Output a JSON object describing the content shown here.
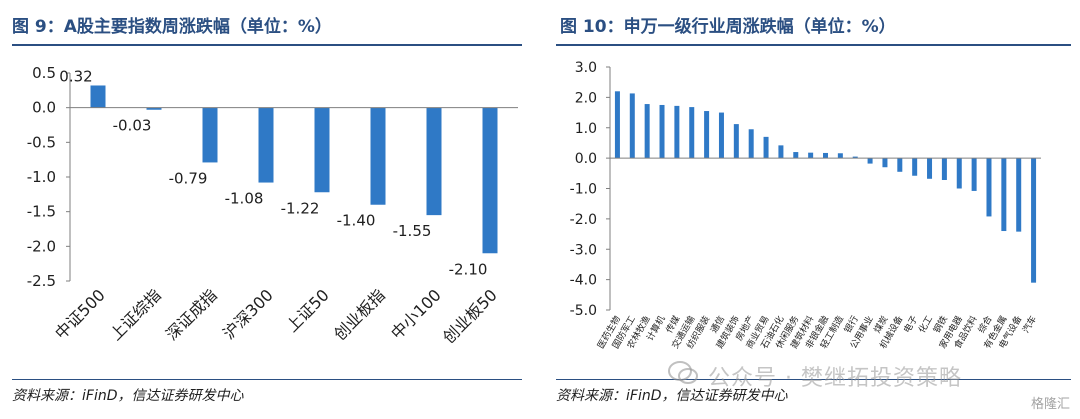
{
  "chart_data": [
    {
      "type": "bar",
      "title": "图 9：A股主要指数周涨跌幅（单位：%）",
      "categories": [
        "中证500",
        "上证综指",
        "深证成指",
        "沪深300",
        "上证50",
        "创业板指",
        "中小100",
        "创业板50"
      ],
      "values": [
        0.32,
        -0.03,
        -0.79,
        -1.08,
        -1.22,
        -1.4,
        -1.55,
        -2.1
      ],
      "value_labels": [
        "0.32",
        "-0.03",
        "-0.79",
        "-1.08",
        "-1.22",
        "-1.40",
        "-1.55",
        "-2.10"
      ],
      "yticks": [
        "0.5",
        "0.0",
        "-0.5",
        "-1.0",
        "-1.5",
        "-2.0",
        "-2.5"
      ],
      "ylim": [
        -2.5,
        0.5
      ],
      "grid": false,
      "source": "资料来源：iFinD，信达证券研发中心"
    },
    {
      "type": "bar",
      "title": "图 10：申万一级行业周涨跌幅（单位：%）",
      "categories": [
        "医药生物",
        "国防军工",
        "农林牧渔",
        "计算机",
        "传媒",
        "交通运输",
        "纺织服装",
        "通信",
        "建筑装饰",
        "房地产",
        "商业贸易",
        "石油石化",
        "休闲服务",
        "建筑材料",
        "非银金融",
        "轻工制造",
        "银行",
        "公用事业",
        "煤炭",
        "机械设备",
        "电子",
        "化工",
        "钢铁",
        "家用电器",
        "食品饮料",
        "综合",
        "有色金属",
        "电气设备",
        "汽车"
      ],
      "values": [
        2.2,
        2.13,
        1.78,
        1.75,
        1.72,
        1.68,
        1.55,
        1.5,
        1.12,
        0.95,
        0.7,
        0.42,
        0.2,
        0.18,
        0.17,
        0.16,
        0.05,
        -0.18,
        -0.3,
        -0.45,
        -0.58,
        -0.68,
        -0.72,
        -1.0,
        -1.08,
        -1.92,
        -2.4,
        -2.42,
        -4.1
      ],
      "yticks": [
        "3.0",
        "2.0",
        "1.0",
        "0.0",
        "-1.0",
        "-2.0",
        "-3.0",
        "-4.0",
        "-5.0"
      ],
      "ylim": [
        -5.0,
        3.0
      ],
      "grid": false,
      "source": "资料来源：iFinD，信达证券研发中心"
    }
  ],
  "colors": {
    "bar": "#2f79c6",
    "heading": "#2b4f82",
    "text": "#1f1f1f"
  },
  "watermark": {
    "text": "公众号 · 樊继拓投资策略",
    "corner": "格隆汇"
  }
}
